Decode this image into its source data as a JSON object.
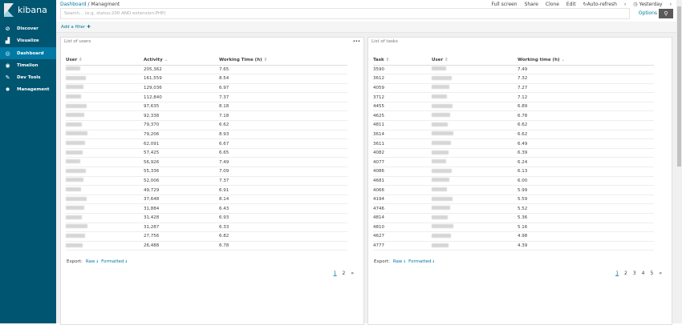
{
  "app": {
    "name": "kibana"
  },
  "nav": [
    {
      "label": "Discover",
      "icon": "compass-icon"
    },
    {
      "label": "Visualize",
      "icon": "bar-chart-icon"
    },
    {
      "label": "Dashboard",
      "icon": "dashboard-icon",
      "active": true
    },
    {
      "label": "Timelion",
      "icon": "timelion-icon"
    },
    {
      "label": "Dev Tools",
      "icon": "wrench-icon"
    },
    {
      "label": "Management",
      "icon": "gear-icon"
    }
  ],
  "breadcrumb": {
    "parent": "Dashboard",
    "sep": "/",
    "current": "Managment"
  },
  "toolbar": {
    "fullscreen": "Full screen",
    "share": "Share",
    "clone": "Clone",
    "edit": "Edit",
    "autorefresh": "Auto-refresh",
    "time": "Yesterday"
  },
  "search": {
    "placeholder": "Search... (e.g. status:200 AND extension:PHP)",
    "options": "Options"
  },
  "filter": {
    "add": "Add a filter"
  },
  "users_panel": {
    "title": "List of users",
    "columns": [
      "User",
      "Activity",
      "Working Time (h)"
    ],
    "rows": [
      [
        "205,362",
        "7.65"
      ],
      [
        "161,559",
        "8.54"
      ],
      [
        "129,036",
        "6.97"
      ],
      [
        "112,840",
        "7.37"
      ],
      [
        "97,635",
        "8.18"
      ],
      [
        "92,338",
        "7.18"
      ],
      [
        "79,370",
        "6.62"
      ],
      [
        "79,206",
        "8.93"
      ],
      [
        "62,091",
        "6.67"
      ],
      [
        "57,425",
        "6.65"
      ],
      [
        "56,926",
        "7.49"
      ],
      [
        "55,336",
        "7.09"
      ],
      [
        "52,006",
        "7.37"
      ],
      [
        "49,729",
        "6.91"
      ],
      [
        "37,648",
        "8.14"
      ],
      [
        "31,884",
        "6.43"
      ],
      [
        "31,428",
        "6.93"
      ],
      [
        "31,287",
        "6.33"
      ],
      [
        "27,756",
        "6.82"
      ],
      [
        "26,488",
        "6.78"
      ]
    ],
    "export": "Export:",
    "raw": "Raw",
    "formatted": "Formatted",
    "pages": [
      "1",
      "2",
      "»"
    ]
  },
  "tasks_panel": {
    "title": "List of tasks",
    "columns": [
      "Task",
      "User",
      "Working time (h)"
    ],
    "rows": [
      [
        "3590",
        "7.49"
      ],
      [
        "3612",
        "7.32"
      ],
      [
        "4059",
        "7.27"
      ],
      [
        "3712",
        "7.12"
      ],
      [
        "4455",
        "6.89"
      ],
      [
        "4625",
        "6.78"
      ],
      [
        "4811",
        "6.62"
      ],
      [
        "3614",
        "6.62"
      ],
      [
        "3611",
        "6.49"
      ],
      [
        "4082",
        "6.39"
      ],
      [
        "4077",
        "6.24"
      ],
      [
        "4086",
        "6.13"
      ],
      [
        "4681",
        "6.00"
      ],
      [
        "4066",
        "5.99"
      ],
      [
        "4194",
        "5.59"
      ],
      [
        "4746",
        "5.52"
      ],
      [
        "4814",
        "5.36"
      ],
      [
        "4810",
        "5.16"
      ],
      [
        "4627",
        "4.98"
      ],
      [
        "4777",
        "4.39"
      ]
    ],
    "export": "Export:",
    "raw": "Raw",
    "formatted": "Formatted",
    "pages": [
      "1",
      "2",
      "3",
      "4",
      "5",
      "»"
    ]
  },
  "colors": {
    "sidebar": "#005571",
    "active": "#0079a5",
    "link": "#0079a5"
  }
}
